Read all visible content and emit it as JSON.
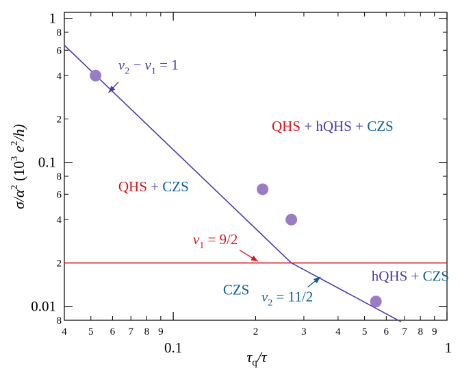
{
  "colors": {
    "red": "#d4161c",
    "purple": "#9a7cc4",
    "purple_line": "#4a3aa8",
    "blue": "#0a5e96",
    "axis": "#000000"
  },
  "chart_data": {
    "type": "scatter",
    "xscale": "log",
    "yscale": "log",
    "xlim": [
      0.04,
      1
    ],
    "ylim": [
      0.008,
      1.1
    ],
    "grid": false,
    "xlabel": "τq/τ",
    "ylabel": "σ/α² (10³ e²/h)",
    "x_major_ticks": [
      {
        "value": 0.1,
        "label": "0.1"
      },
      {
        "value": 1,
        "label": "1"
      }
    ],
    "x_minor_ticks": [
      {
        "value": 0.04,
        "label": "4"
      },
      {
        "value": 0.05,
        "label": "5"
      },
      {
        "value": 0.06,
        "label": "6"
      },
      {
        "value": 0.07,
        "label": "7"
      },
      {
        "value": 0.08,
        "label": "8"
      },
      {
        "value": 0.09,
        "label": "9"
      },
      {
        "value": 0.2,
        "label": "2"
      },
      {
        "value": 0.3,
        "label": "3"
      },
      {
        "value": 0.4,
        "label": "4"
      },
      {
        "value": 0.5,
        "label": "5"
      },
      {
        "value": 0.6,
        "label": "6"
      },
      {
        "value": 0.7,
        "label": "7"
      },
      {
        "value": 0.8,
        "label": "8"
      },
      {
        "value": 0.9,
        "label": "9"
      }
    ],
    "y_major_ticks": [
      {
        "value": 0.01,
        "label": "0.01"
      },
      {
        "value": 0.1,
        "label": "0.1"
      },
      {
        "value": 1,
        "label": "1"
      }
    ],
    "y_minor_ticks": [
      {
        "value": 0.008,
        "label": "8"
      },
      {
        "value": 0.02,
        "label": "2"
      },
      {
        "value": 0.04,
        "label": "4"
      },
      {
        "value": 0.06,
        "label": "6"
      },
      {
        "value": 0.08,
        "label": "8"
      },
      {
        "value": 0.2,
        "label": "2"
      },
      {
        "value": 0.4,
        "label": "4"
      },
      {
        "value": 0.6,
        "label": "6"
      },
      {
        "value": 0.8,
        "label": "8"
      }
    ],
    "points": [
      {
        "x": 0.052,
        "y": 0.4
      },
      {
        "x": 0.212,
        "y": 0.065
      },
      {
        "x": 0.27,
        "y": 0.04
      },
      {
        "x": 0.55,
        "y": 0.0108
      }
    ],
    "lines": [
      {
        "name": "ν2 − ν1 = 1",
        "color": "purple_line",
        "x": [
          0.04,
          0.27,
          0.68
        ],
        "y": [
          0.65,
          0.02,
          0.0078
        ]
      },
      {
        "name": "ν1 = 9/2",
        "color": "red",
        "x": [
          0.04,
          1.0
        ],
        "y": [
          0.02,
          0.02
        ]
      }
    ],
    "region_labels": [
      {
        "parts": [
          {
            "text": "QHS",
            "color": "red"
          },
          {
            "text": " + ",
            "color": "purple_line"
          },
          {
            "text": "hQHS",
            "color": "purple_line"
          },
          {
            "text": " + ",
            "color": "purple_line"
          },
          {
            "text": "CZS",
            "color": "blue"
          }
        ],
        "x": 0.229,
        "y": 0.165
      },
      {
        "parts": [
          {
            "text": "QHS",
            "color": "red"
          },
          {
            "text": " + ",
            "color": "purple_line"
          },
          {
            "text": "CZS",
            "color": "blue"
          }
        ],
        "x": 0.063,
        "y": 0.063
      },
      {
        "parts": [
          {
            "text": "hQHS",
            "color": "purple_line"
          },
          {
            "text": " + ",
            "color": "purple_line"
          },
          {
            "text": "CZS",
            "color": "blue"
          }
        ],
        "x": 0.53,
        "y": 0.015
      },
      {
        "parts": [
          {
            "text": "CZS",
            "color": "blue"
          }
        ],
        "x": 0.152,
        "y": 0.0121
      }
    ],
    "annotations": [
      {
        "text_before": "ν",
        "sub": "2",
        "text_after": " − ν",
        "sub2": "1",
        "text_end": " = 1",
        "color": "purple_line",
        "x": 0.063,
        "y": 0.44,
        "arrow_from": {
          "x": 0.063,
          "y": 0.36
        },
        "arrow_to": {
          "x": 0.058,
          "y": 0.305
        }
      },
      {
        "text_before": "ν",
        "sub": "1",
        "text_after": " = 9/2",
        "sub2": "",
        "text_end": "",
        "color": "red",
        "x": 0.118,
        "y": 0.027,
        "arrow_from": {
          "x": 0.175,
          "y": 0.0245
        },
        "arrow_to": {
          "x": 0.204,
          "y": 0.0205
        }
      },
      {
        "text_before": "ν",
        "sub": "2",
        "text_after": " = 11/2",
        "sub2": "",
        "text_end": "",
        "color": "blue",
        "x": 0.21,
        "y": 0.0108,
        "arrow_from": {
          "x": 0.31,
          "y": 0.0136
        },
        "arrow_to": {
          "x": 0.345,
          "y": 0.016
        }
      }
    ]
  }
}
